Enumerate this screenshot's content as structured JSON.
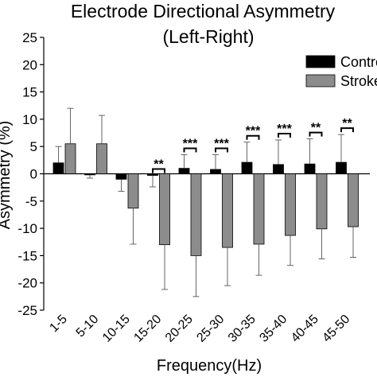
{
  "chart_data": {
    "type": "bar",
    "title": "Electrode Directional Asymmetry",
    "subtitle": "(Left-Right)",
    "xlabel": "Frequency(Hz)",
    "ylabel": "Asymmetry (%)",
    "ylim": [
      -25,
      25
    ],
    "yticks": [
      25,
      20,
      15,
      10,
      5,
      0,
      -5,
      -10,
      -15,
      -20,
      -25
    ],
    "grid": false,
    "legend_position": "top-right",
    "categories": [
      "1-5",
      "5-10",
      "10-15",
      "15-20",
      "20-25",
      "25-30",
      "30-35",
      "35-40",
      "40-45",
      "45-50"
    ],
    "series": [
      {
        "name": "Control",
        "color": "#000000",
        "values": [
          2.0,
          -0.2,
          -1.0,
          -0.3,
          1.0,
          0.8,
          2.1,
          1.7,
          1.8,
          2.1
        ],
        "errors": [
          3.0,
          0.6,
          2.2,
          2.1,
          2.5,
          2.7,
          3.7,
          4.5,
          4.6,
          5.1
        ]
      },
      {
        "name": "Stroke",
        "color": "#8c8c8c",
        "values": [
          5.5,
          5.5,
          -6.3,
          -13.0,
          -15.0,
          -13.5,
          -12.9,
          -11.3,
          -10.1,
          -9.7
        ],
        "errors": [
          6.5,
          5.2,
          6.6,
          8.2,
          7.5,
          7.0,
          5.7,
          5.5,
          5.5,
          5.6
        ]
      }
    ],
    "annotations": [
      "",
      "",
      "",
      "**",
      "***",
      "***",
      "***",
      "***",
      "**",
      "**"
    ]
  }
}
